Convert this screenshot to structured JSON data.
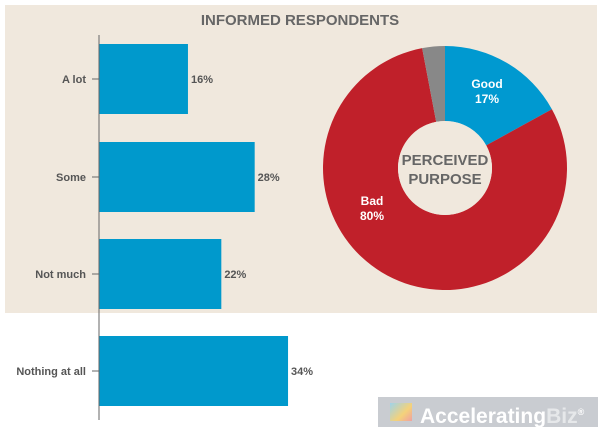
{
  "chart_data": [
    {
      "type": "bar",
      "orientation": "horizontal",
      "title": "INFORMED RESPONDENTS",
      "categories": [
        "A lot",
        "Some",
        "Not much",
        "Nothing at all"
      ],
      "values": [
        16,
        28,
        22,
        34
      ],
      "labels": [
        "16%",
        "28%",
        "22%",
        "34%"
      ],
      "color": "#0099cc",
      "xlim": [
        0,
        100
      ]
    },
    {
      "type": "pie",
      "donut": true,
      "center_label": [
        "PERCEIVED",
        "PURPOSE"
      ],
      "slices": [
        {
          "name": "Good",
          "value": 17,
          "label": "17%",
          "color": "#0099d0"
        },
        {
          "name": "Bad",
          "value": 80,
          "label": "80%",
          "color": "#c0202a"
        },
        {
          "name": "",
          "value": 3,
          "label": "",
          "color": "#888888"
        }
      ]
    }
  ],
  "logo": {
    "text_a": "Accelerating",
    "text_b": "Biz",
    "reg": "®"
  }
}
